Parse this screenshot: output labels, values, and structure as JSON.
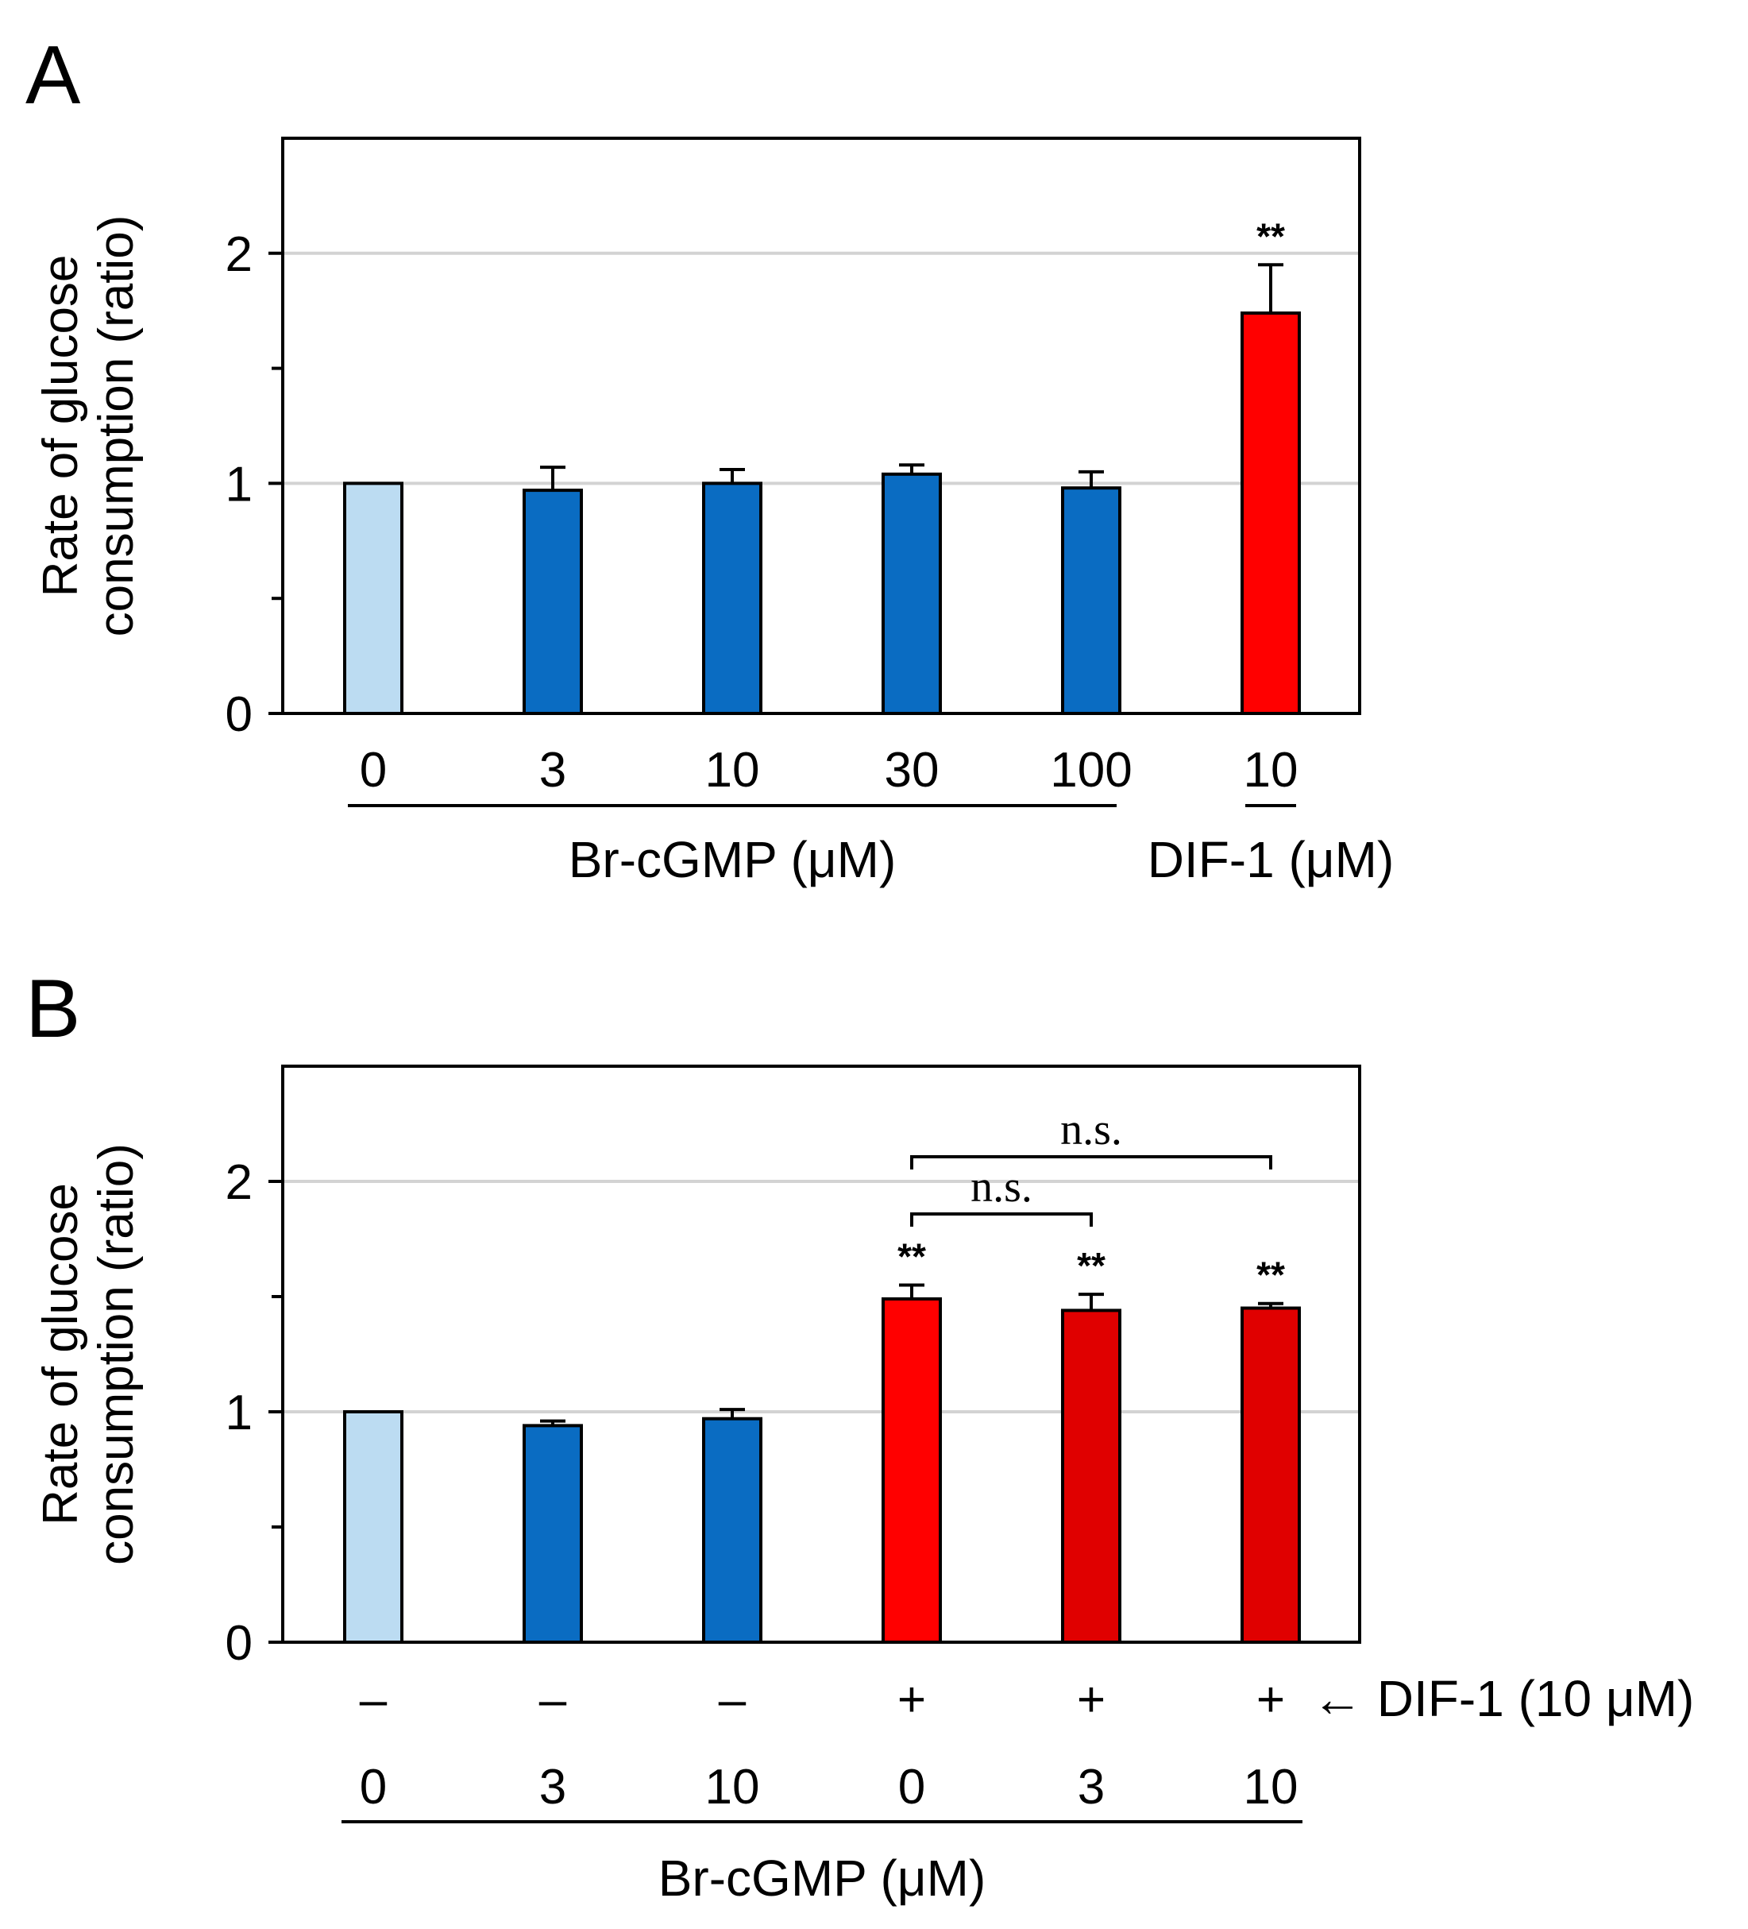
{
  "chart_data": [
    {
      "type": "bar",
      "panel": "A",
      "ylabel_line1": "Rate of glucose",
      "ylabel_line2": "consumption (ratio)",
      "ylim": [
        0,
        2.5
      ],
      "yticks": [
        "0",
        "1",
        "2"
      ],
      "grid": "horizontal at 1 and 2",
      "categories": [
        "0",
        "3",
        "10",
        "30",
        "100",
        "10"
      ],
      "values": [
        1.0,
        0.97,
        1.0,
        1.04,
        0.98,
        1.74
      ],
      "errors": [
        0,
        0.1,
        0.06,
        0.04,
        0.07,
        0.21
      ],
      "bar_colors": [
        "#bcdcf2",
        "#0a6cc2",
        "#0a6cc2",
        "#0a6cc2",
        "#0a6cc2",
        "#ff0000"
      ],
      "significance": [
        "",
        "",
        "",
        "",
        "",
        "**"
      ],
      "groups": [
        {
          "label": "Br-cGMP (μM)",
          "from": 0,
          "to": 4
        },
        {
          "label": "DIF-1 (μM)",
          "from": 5,
          "to": 5
        }
      ]
    },
    {
      "type": "bar",
      "panel": "B",
      "ylabel_line1": "Rate of glucose",
      "ylabel_line2": "consumption (ratio)",
      "ylim": [
        0,
        2.5
      ],
      "yticks": [
        "0",
        "1",
        "2"
      ],
      "grid": "horizontal at 1 and 2",
      "categories": [
        "0",
        "3",
        "10",
        "0",
        "3",
        "10"
      ],
      "dif_signs": [
        "–",
        "–",
        "–",
        "+",
        "+",
        "+"
      ],
      "dif_row_label": "← DIF-1 (10 μM)",
      "values": [
        1.0,
        0.94,
        0.97,
        1.49,
        1.44,
        1.45
      ],
      "errors": [
        0,
        0.02,
        0.04,
        0.06,
        0.07,
        0.02
      ],
      "bar_colors": [
        "#bcdcf2",
        "#0a6cc2",
        "#0a6cc2",
        "#ff0000",
        "#e00000",
        "#e00000"
      ],
      "significance": [
        "",
        "",
        "",
        "**",
        "**",
        "**"
      ],
      "brackets": [
        {
          "from": 3,
          "to": 4,
          "label": "n.s."
        },
        {
          "from": 3,
          "to": 5,
          "label": "n.s."
        }
      ],
      "groups": [
        {
          "label": "Br-cGMP (μM)",
          "from": 0,
          "to": 5
        }
      ]
    }
  ]
}
